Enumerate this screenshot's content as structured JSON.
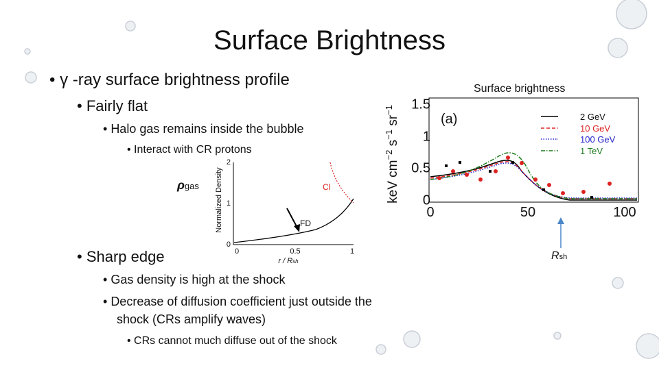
{
  "title": "Surface Brightness",
  "bullets": [
    {
      "text": "γ -ray surface brightness profile"
    },
    {
      "text": "Fairly flat"
    },
    {
      "text": "Halo gas remains inside the bubble"
    },
    {
      "text": "Interact with CR protons"
    },
    {
      "text": "Sharp edge"
    },
    {
      "text": "Gas density is high at the shock"
    },
    {
      "text": "Decrease of diffusion coefficient just outside the",
      "continuation": "shock (CRs amplify waves)"
    },
    {
      "text": "CRs cannot much diffuse out of the shock"
    }
  ],
  "figure_left": {
    "side_label": {
      "main": "ρ",
      "sub": "gas"
    },
    "y_label": "Normalized Density",
    "yticks": [
      "0",
      "1",
      "2"
    ],
    "xticks": [
      "0",
      "0.5",
      "1"
    ],
    "x_label": {
      "main": "r / R",
      "sub": "sh"
    },
    "curve_labels": [
      "CI",
      "FD"
    ]
  },
  "figure_right": {
    "caption": "Surface brightness",
    "panel": "(a)",
    "y_label": {
      "base": [
        "keV cm",
        " s",
        " sr"
      ],
      "exp": [
        "−2",
        "−1",
        "−1"
      ]
    },
    "yticks": [
      "0",
      "0.5",
      "1",
      "1.5"
    ],
    "xticks": [
      "0",
      "50",
      "100"
    ],
    "legend": [
      "2 GeV",
      "10 GeV",
      "100 GeV",
      "1 TeV"
    ],
    "marker_label": {
      "main": "R",
      "sub": "sh"
    }
  }
}
